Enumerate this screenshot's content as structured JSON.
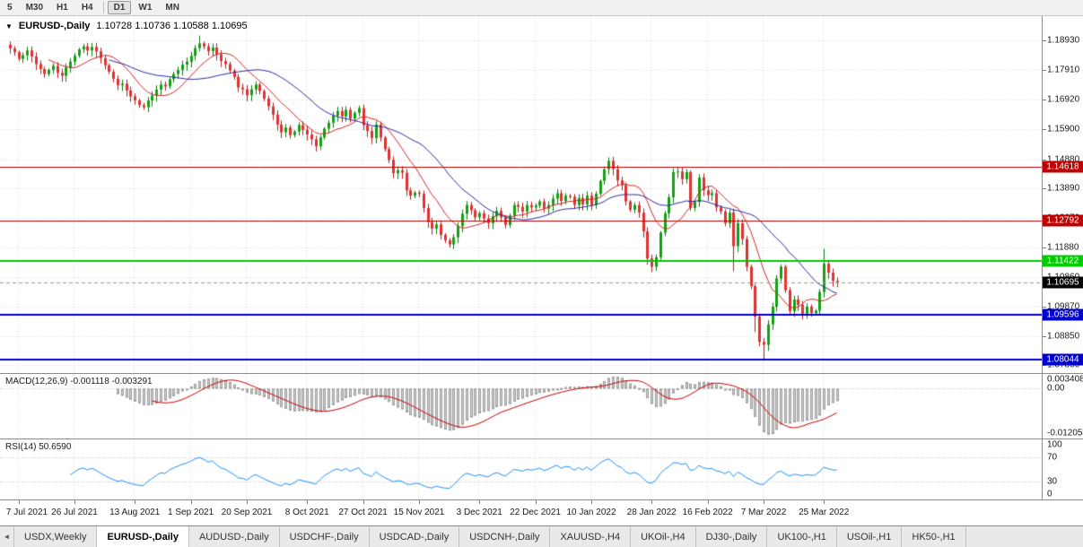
{
  "toolbar": {
    "timeframes": [
      "5",
      "M30",
      "H1",
      "H4",
      "D1",
      "W1",
      "MN"
    ],
    "active": "D1",
    "separator_after": "H4"
  },
  "chart": {
    "dropdown_icon": "▼",
    "symbol": "EURUSD-,Daily",
    "ohlc_text": "1.10728 1.10736 1.10588 1.10695"
  },
  "chart_data": {
    "type": "candlestick",
    "symbol": "EURUSD",
    "timeframe": "Daily",
    "current_bar": {
      "open": 1.10728,
      "high": 1.10736,
      "low": 1.10588,
      "close": 1.10695
    },
    "price_scale": {
      "min": 1.076,
      "max": 1.1975
    },
    "price_ticks": [
      "1.18930",
      "1.17910",
      "1.16920",
      "1.15900",
      "1.14880",
      "1.13890",
      "1.12870",
      "1.11880",
      "1.10860",
      "1.09870",
      "1.08850",
      "1.07860"
    ],
    "levels": [
      {
        "value": 1.14618,
        "label": "1.14618",
        "color": "#c00000",
        "width": 1
      },
      {
        "value": 1.12792,
        "label": "1.12792",
        "color": "#c00000",
        "width": 1
      },
      {
        "value": 1.11422,
        "label": "1.11422",
        "color": "#00cc00",
        "width": 2
      },
      {
        "value": 1.09596,
        "label": "1.09596",
        "color": "#0000cc",
        "width": 2
      },
      {
        "value": 1.08044,
        "label": "1.08044",
        "color": "#0000cc",
        "width": 2
      }
    ],
    "current_price": {
      "value": 1.10695,
      "label": "1.10695",
      "color": "#000000"
    },
    "candles": {
      "first_open": 1.1878,
      "bull_color": "#12a112",
      "bear_color": "#e03232",
      "wick_bull": "#0a7a0a",
      "wick_bear": "#b02020",
      "closes": [
        1.1865,
        1.1852,
        1.183,
        1.1842,
        1.1858,
        1.1838,
        1.1812,
        1.1795,
        1.1778,
        1.1792,
        1.1806,
        1.1782,
        1.1772,
        1.18,
        1.182,
        1.184,
        1.1862,
        1.1872,
        1.1858,
        1.187,
        1.1855,
        1.1832,
        1.1808,
        1.1786,
        1.1762,
        1.174,
        1.1745,
        1.1722,
        1.1702,
        1.1688,
        1.1672,
        1.1665,
        1.1688,
        1.1705,
        1.1725,
        1.1742,
        1.1736,
        1.176,
        1.1778,
        1.1792,
        1.181,
        1.182,
        1.184,
        1.1866,
        1.1882,
        1.1872,
        1.1856,
        1.1868,
        1.1845,
        1.1822,
        1.1812,
        1.179,
        1.1768,
        1.1732,
        1.1726,
        1.1706,
        1.1726,
        1.1742,
        1.172,
        1.1694,
        1.1668,
        1.164,
        1.1606,
        1.158,
        1.1596,
        1.157,
        1.1582,
        1.1604,
        1.1588,
        1.1572,
        1.1556,
        1.1532,
        1.1562,
        1.1592,
        1.1612,
        1.1636,
        1.1652,
        1.1634,
        1.1656,
        1.1626,
        1.1646,
        1.1662,
        1.1604,
        1.1584,
        1.156,
        1.1606,
        1.1562,
        1.1522,
        1.1486,
        1.144,
        1.145,
        1.1442,
        1.1382,
        1.1364,
        1.1374,
        1.137,
        1.1322,
        1.1274,
        1.1252,
        1.1266,
        1.123,
        1.1212,
        1.1198,
        1.1222,
        1.126,
        1.1302,
        1.1332,
        1.1314,
        1.129,
        1.1304,
        1.1286,
        1.127,
        1.1294,
        1.1312,
        1.129,
        1.1264,
        1.1296,
        1.1332,
        1.1326,
        1.131,
        1.1332,
        1.1324,
        1.133,
        1.1344,
        1.132,
        1.1332,
        1.1354,
        1.1372,
        1.1346,
        1.1364,
        1.136,
        1.1332,
        1.1356,
        1.1334,
        1.1364,
        1.1332,
        1.137,
        1.1414,
        1.1454,
        1.1482,
        1.1454,
        1.1416,
        1.14,
        1.1344,
        1.1316,
        1.1332,
        1.1306,
        1.1242,
        1.115,
        1.1122,
        1.1154,
        1.1238,
        1.1304,
        1.1358,
        1.1444,
        1.1446,
        1.142,
        1.1444,
        1.1322,
        1.1342,
        1.1426,
        1.1382,
        1.1366,
        1.1372,
        1.1324,
        1.131,
        1.127,
        1.1306,
        1.1192,
        1.127,
        1.1216,
        1.1122,
        1.1056,
        1.0952,
        1.0866,
        1.0856,
        1.0926,
        1.0986,
        1.1082,
        1.1122,
        1.1042,
        1.097,
        1.101,
        1.0992,
        1.0962,
        1.0986,
        1.0964,
        1.0972,
        1.1036,
        1.1132,
        1.1102,
        1.1074,
        1.10695
      ],
      "wick_overrides": {
        "31": {
          "low": 1.1656
        },
        "44": {
          "high": 1.1909
        },
        "168": {
          "low": 1.1106
        },
        "173": {
          "low": 1.09
        },
        "175": {
          "low": 1.0806
        },
        "189": {
          "high": 1.1183
        }
      }
    },
    "moving_averages": [
      {
        "period": 10,
        "color": "#d02828"
      },
      {
        "period": 24,
        "color": "#2c2c9e"
      }
    ],
    "time_labels": [
      {
        "text": "7 Jul 2021",
        "index": 2
      },
      {
        "text": "26 Jul 2021",
        "index": 15
      },
      {
        "text": "13 Aug 2021",
        "index": 29
      },
      {
        "text": "1 Sep 2021",
        "index": 42
      },
      {
        "text": "20 Sep 2021",
        "index": 55
      },
      {
        "text": "8 Oct 2021",
        "index": 69
      },
      {
        "text": "27 Oct 2021",
        "index": 82
      },
      {
        "text": "15 Nov 2021",
        "index": 95
      },
      {
        "text": "3 Dec 2021",
        "index": 109
      },
      {
        "text": "22 Dec 2021",
        "index": 122
      },
      {
        "text": "10 Jan 2022",
        "index": 135
      },
      {
        "text": "28 Jan 2022",
        "index": 149
      },
      {
        "text": "16 Feb 2022",
        "index": 162
      },
      {
        "text": "7 Mar 2022",
        "index": 175
      },
      {
        "text": "25 Mar 2022",
        "index": 189
      }
    ],
    "macd": {
      "label_full": "MACD(12,26,9) -0.001118 -0.003291",
      "fast": 12,
      "slow": 26,
      "signal": 9,
      "axis_max": "0.003408",
      "axis_zero": "0.00",
      "axis_min": "-0.012054",
      "hist_fill": "#cfcfcf",
      "hist_border": "#9e9e9e",
      "signal_color": "#cc0000"
    },
    "rsi": {
      "label_full": "RSI(14) 50.6590",
      "period": 14,
      "axis": [
        "100",
        "70",
        "30",
        "0"
      ],
      "levels": [
        70,
        30
      ],
      "line_color": "#1e90ff"
    }
  },
  "tabs": {
    "scroll_left_icon": "◄",
    "items": [
      "USDX,Weekly",
      "EURUSD-,Daily",
      "AUDUSD-,Daily",
      "USDCHF-,Daily",
      "USDCAD-,Daily",
      "USDCNH-,Daily",
      "XAUUSD-,H4",
      "UKOil-,H4",
      "DJ30-,Daily",
      "UK100-,H1",
      "USOil-,H1",
      "HK50-,H1"
    ],
    "active_index": 1
  }
}
